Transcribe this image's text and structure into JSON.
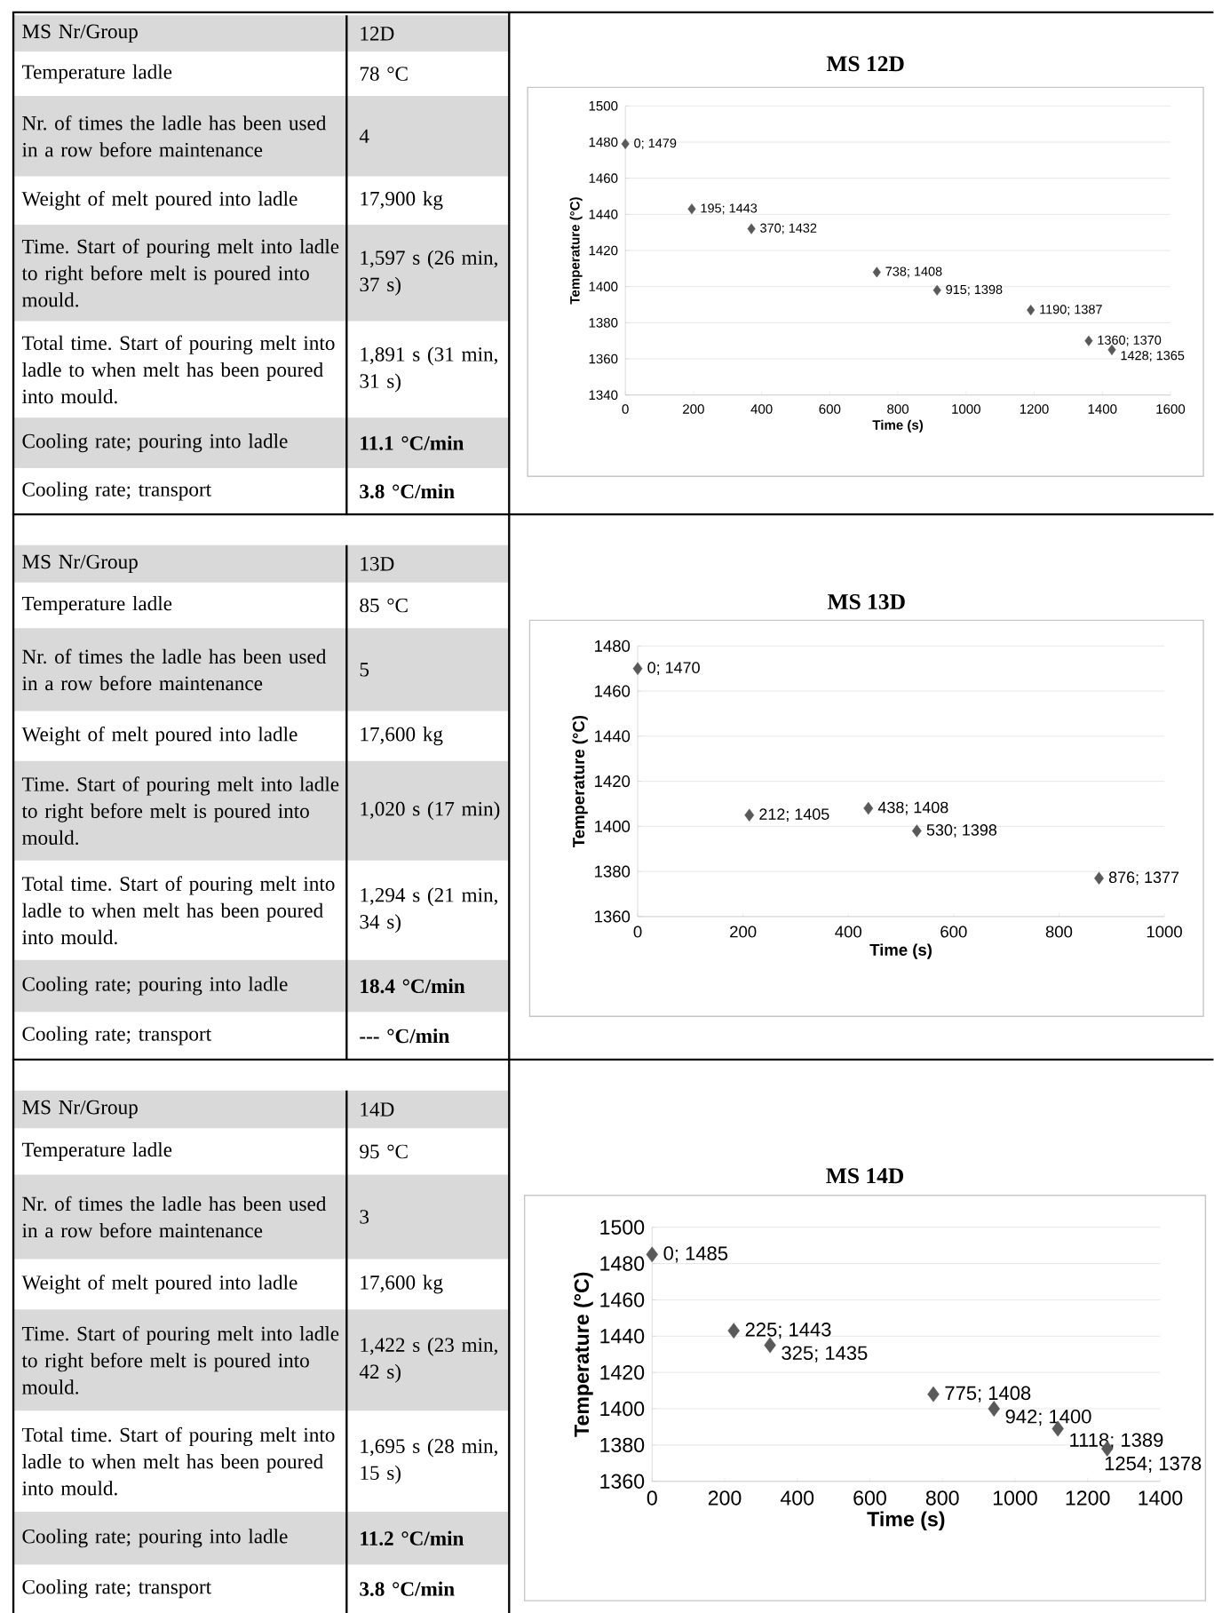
{
  "chart_data": [
    {
      "type": "other",
      "categories": [
        "MS Nr/Group",
        "Temperature ladle",
        "Nr. of times the ladle has been used in a row before maintenance",
        "Weight of melt poured into ladle",
        "Time. Start of pouring melt into ladle to right before melt is poured into mould.",
        "Total time. Start of pouring melt into ladle to when melt has been poured into mould.",
        "Cooling rate; pouring into ladle",
        "Cooling rate; transport"
      ],
      "annotations": [
        "12D",
        "78 °C",
        "4",
        "17,900 kg",
        "1,597 s (26 min, 37 s)",
        "1,891 s (31 min, 31 s)",
        "11.1 °C/min",
        "3.8 °C/min"
      ]
    },
    {
      "type": "scatter",
      "title": "MS 12D",
      "xlabel": "Time (s)",
      "ylabel": "Temperature (°C)",
      "color": "#595959",
      "marker": "diamond",
      "grid": "y",
      "x": [
        0,
        195,
        370,
        738,
        915,
        1190,
        1360,
        1428
      ],
      "values": [
        1479,
        1443,
        1432,
        1408,
        1398,
        1387,
        1370,
        1365
      ],
      "value_labels": [
        "0; 1479",
        "195; 1443",
        "370; 1432",
        "738; 1408",
        "915; 1398",
        "1190; 1387",
        "1360; 1370",
        "1428; 1365"
      ],
      "xlim": [
        0,
        1600
      ],
      "xticks": [
        0,
        200,
        400,
        600,
        800,
        1000,
        1200,
        1400,
        1600
      ],
      "ylim": [
        1340,
        1500
      ],
      "yticks": [
        1340,
        1360,
        1380,
        1400,
        1420,
        1440,
        1460,
        1480,
        1500
      ]
    },
    {
      "type": "other",
      "categories": [
        "MS Nr/Group",
        "Temperature ladle",
        "Nr. of times the ladle has been used in a row before maintenance",
        "Weight of melt poured into ladle",
        "Time. Start of pouring melt into ladle to right before melt is poured into mould.",
        "Total time. Start of pouring melt into ladle to when melt has been poured into mould.",
        "Cooling rate; pouring into ladle",
        "Cooling rate; transport"
      ],
      "annotations": [
        "13D",
        "85 °C",
        "5",
        "17,600 kg",
        "1,020 s (17 min)",
        "1,294 s (21 min, 34 s)",
        "18.4 °C/min",
        "--- °C/min"
      ]
    },
    {
      "type": "scatter",
      "title": "MS 13D",
      "xlabel": "Time (s)",
      "ylabel": "Temperature (°C)",
      "color": "#595959",
      "marker": "diamond",
      "grid": "y",
      "x": [
        0,
        212,
        438,
        530,
        876
      ],
      "values": [
        1470,
        1405,
        1408,
        1398,
        1377
      ],
      "value_labels": [
        "0; 1470",
        "212; 1405",
        "438; 1408",
        "530; 1398",
        "876; 1377"
      ],
      "xlim": [
        0,
        1000
      ],
      "xticks": [
        0,
        200,
        400,
        600,
        800,
        1000
      ],
      "ylim": [
        1360,
        1480
      ],
      "yticks": [
        1360,
        1380,
        1400,
        1420,
        1440,
        1460,
        1480
      ]
    },
    {
      "type": "other",
      "categories": [
        "MS Nr/Group",
        "Temperature ladle",
        "Nr. of times the ladle has been used in a row before maintenance",
        "Weight of melt poured into ladle",
        "Time. Start of pouring melt into ladle to right before melt is poured into mould.",
        "Total time. Start of pouring melt into ladle to when melt has been poured into mould.",
        "Cooling rate; pouring into ladle",
        "Cooling rate; transport"
      ],
      "annotations": [
        "14D",
        "95 °C",
        "3",
        "17,600 kg",
        "1,422 s (23 min, 42 s)",
        "1,695 s (28 min, 15 s)",
        "11.2 °C/min",
        "3.8 °C/min"
      ]
    },
    {
      "type": "scatter",
      "title": "MS 14D",
      "xlabel": "Time (s)",
      "ylabel": "Temperature (°C)",
      "color": "#595959",
      "marker": "diamond",
      "grid": "y",
      "x": [
        0,
        225,
        325,
        775,
        942,
        1118,
        1254
      ],
      "values": [
        1485,
        1443,
        1435,
        1408,
        1400,
        1389,
        1378
      ],
      "value_labels": [
        "0; 1485",
        "225; 1443",
        "325; 1435",
        "775; 1408",
        "942; 1400",
        "1118; 1389",
        "1254; 1378"
      ],
      "xlim": [
        0,
        1400
      ],
      "xticks": [
        0,
        200,
        400,
        600,
        800,
        1000,
        1200,
        1400
      ],
      "ylim": [
        1360,
        1500
      ],
      "yticks": [
        1360,
        1380,
        1400,
        1420,
        1440,
        1460,
        1480,
        1500
      ]
    }
  ]
}
